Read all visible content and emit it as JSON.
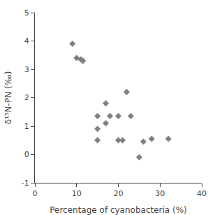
{
  "chart_data": {
    "type": "scatter",
    "x": [
      9,
      10,
      11,
      11.5,
      15,
      15,
      15,
      17,
      17,
      18,
      20,
      20,
      21,
      22,
      23,
      25,
      26,
      28,
      32
    ],
    "values": [
      3.9,
      3.4,
      3.35,
      3.3,
      1.35,
      0.9,
      0.5,
      1.8,
      1.1,
      1.35,
      1.35,
      0.5,
      0.5,
      2.2,
      1.35,
      -0.1,
      0.45,
      0.55,
      0.55
    ],
    "color": "#808080",
    "marker": "diamond",
    "xlabel": "Percentage of cyanobacteria (%)",
    "ylabel": "δ¹⁵N-PN (‰)",
    "xlim": [
      0,
      40
    ],
    "ylim": [
      -1,
      5
    ],
    "xticks": [
      0,
      10,
      20,
      30,
      40
    ],
    "yticks": [
      -1,
      0,
      1,
      2,
      3,
      4,
      5
    ],
    "grid": false
  }
}
